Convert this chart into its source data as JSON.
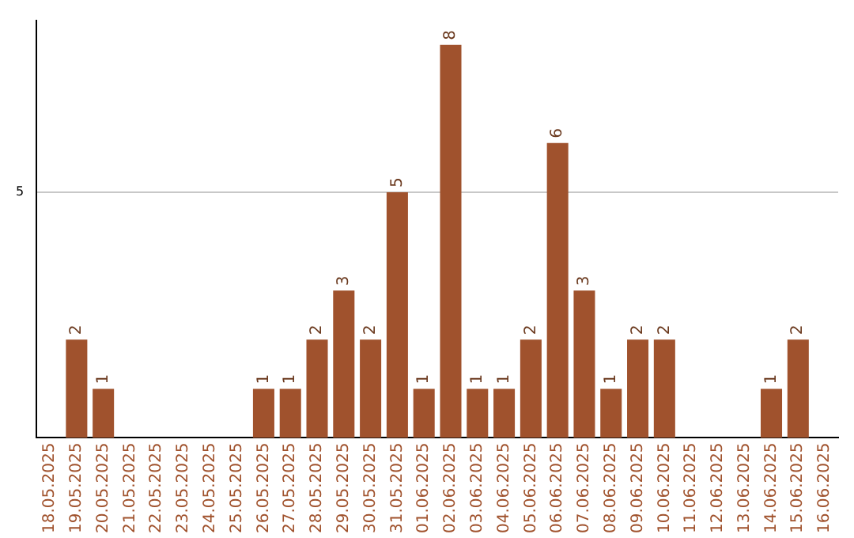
{
  "chart_data": {
    "type": "bar",
    "categories": [
      "18.05.2025",
      "19.05.2025",
      "20.05.2025",
      "21.05.2025",
      "22.05.2025",
      "23.05.2025",
      "24.05.2025",
      "25.05.2025",
      "26.05.2025",
      "27.05.2025",
      "28.05.2025",
      "29.05.2025",
      "30.05.2025",
      "31.05.2025",
      "01.06.2025",
      "02.06.2025",
      "03.06.2025",
      "04.06.2025",
      "05.06.2025",
      "06.06.2025",
      "07.06.2025",
      "08.06.2025",
      "09.06.2025",
      "10.06.2025",
      "11.06.2025",
      "12.06.2025",
      "13.06.2025",
      "14.06.2025",
      "15.06.2025",
      "16.06.2025"
    ],
    "values": [
      null,
      2,
      1,
      null,
      null,
      null,
      null,
      null,
      1,
      1,
      2,
      3,
      2,
      5,
      1,
      8,
      1,
      1,
      2,
      6,
      3,
      1,
      2,
      2,
      null,
      null,
      null,
      1,
      2,
      null
    ],
    "color": "#a0522d",
    "ylim": [
      0,
      8.5
    ],
    "yticks": [
      5
    ],
    "grid": "y",
    "legend": false,
    "data_labels": true
  }
}
